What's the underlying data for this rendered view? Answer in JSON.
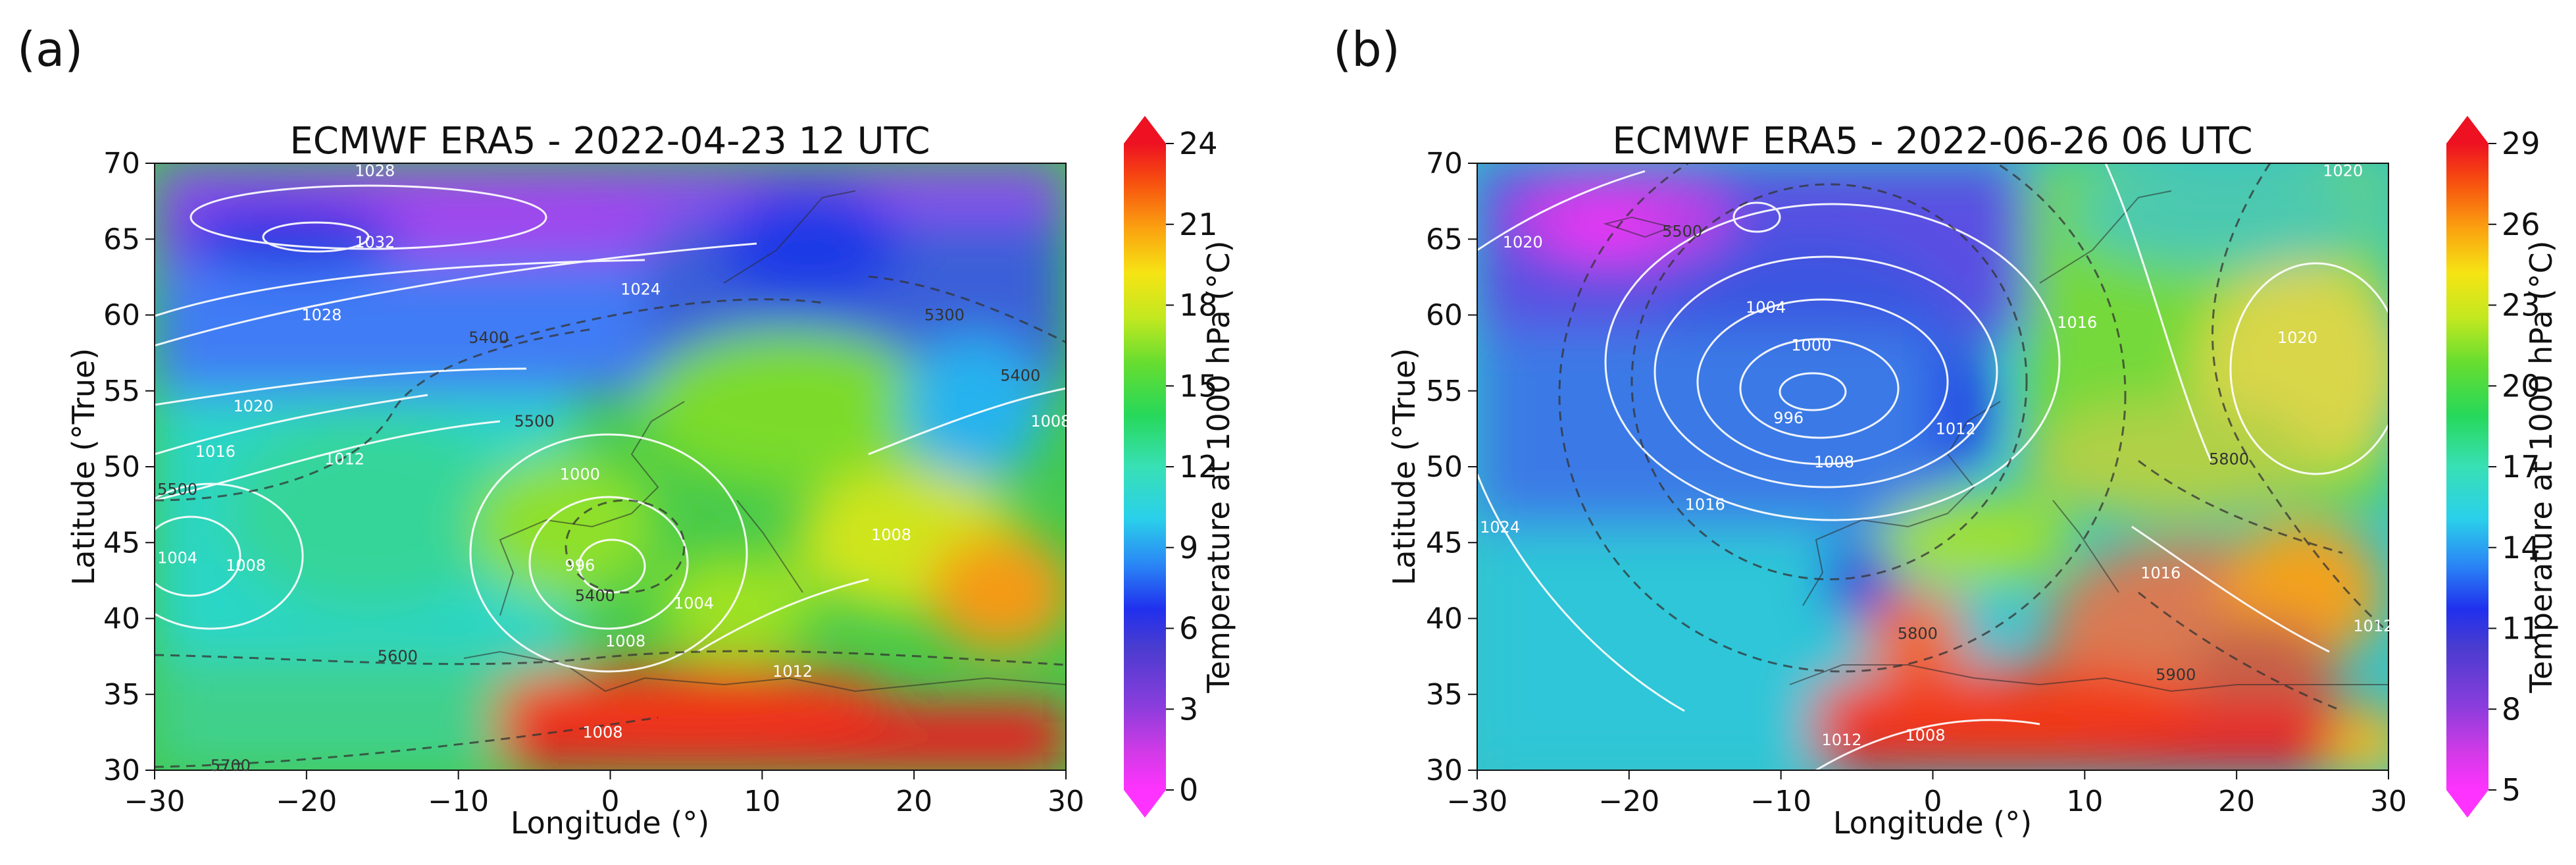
{
  "chart_data": [
    {
      "type": "heatmap",
      "panel_label": "(a)",
      "title": "ECMWF ERA5 - 2022-04-23 12 UTC",
      "xlabel": "Longitude (°)",
      "ylabel": "Latitude (°True)",
      "xlim": [
        -30,
        30
      ],
      "ylim": [
        30,
        70
      ],
      "xticks": [
        "−30",
        "−20",
        "−10",
        "0",
        "10",
        "20",
        "30"
      ],
      "yticks": [
        "30",
        "35",
        "40",
        "45",
        "50",
        "55",
        "60",
        "65",
        "70"
      ],
      "colorbar": {
        "label": "Temperature at 1000 hPa (°C)",
        "range": [
          0,
          24
        ],
        "ticks": [
          "0",
          "3",
          "6",
          "9",
          "12",
          "15",
          "18",
          "21",
          "24"
        ]
      },
      "isobar_labels_hpa": [
        {
          "text": "1028",
          "lon": -15.5,
          "lat": 69.5
        },
        {
          "text": "1032",
          "lon": -15.5,
          "lat": 64.8
        },
        {
          "text": "1028",
          "lon": -19,
          "lat": 60
        },
        {
          "text": "1024",
          "lon": 2,
          "lat": 61.7
        },
        {
          "text": "1020",
          "lon": -23.5,
          "lat": 54
        },
        {
          "text": "1016",
          "lon": -26,
          "lat": 51
        },
        {
          "text": "1012",
          "lon": -17.5,
          "lat": 50.5
        },
        {
          "text": "1000",
          "lon": -2,
          "lat": 49.5
        },
        {
          "text": "996",
          "lon": -2,
          "lat": 43.5
        },
        {
          "text": "1004",
          "lon": -28.5,
          "lat": 44
        },
        {
          "text": "1008",
          "lon": -24,
          "lat": 43.5
        },
        {
          "text": "1004",
          "lon": 5.5,
          "lat": 41
        },
        {
          "text": "1008",
          "lon": 1,
          "lat": 38.5
        },
        {
          "text": "1008",
          "lon": 18.5,
          "lat": 45.5
        },
        {
          "text": "1012",
          "lon": 12,
          "lat": 36.5
        },
        {
          "text": "1008",
          "lon": 29,
          "lat": 53
        },
        {
          "text": "1008",
          "lon": -0.5,
          "lat": 32.5
        }
      ],
      "height_labels_gpm": [
        {
          "text": "5500",
          "lon": -28.5,
          "lat": 48.5
        },
        {
          "text": "5500",
          "lon": -5,
          "lat": 53
        },
        {
          "text": "5400",
          "lon": -1,
          "lat": 41.5
        },
        {
          "text": "5600",
          "lon": -14,
          "lat": 37.5
        },
        {
          "text": "5700",
          "lon": -25,
          "lat": 30.3
        },
        {
          "text": "5300",
          "lon": 22,
          "lat": 60
        },
        {
          "text": "5400",
          "lon": -8,
          "lat": 58.5
        },
        {
          "text": "5400",
          "lon": 27,
          "lat": 56
        }
      ]
    },
    {
      "type": "heatmap",
      "panel_label": "(b)",
      "title": "ECMWF ERA5 - 2022-06-26 06 UTC",
      "xlabel": "Longitude (°)",
      "ylabel": "Latitude (°True)",
      "xlim": [
        -30,
        30
      ],
      "ylim": [
        30,
        70
      ],
      "xticks": [
        "−30",
        "−20",
        "−10",
        "0",
        "10",
        "20",
        "30"
      ],
      "yticks": [
        "30",
        "35",
        "40",
        "45",
        "50",
        "55",
        "60",
        "65",
        "70"
      ],
      "colorbar": {
        "label": "Temperature at 1000 hPa (°C)",
        "range": [
          5,
          29
        ],
        "ticks": [
          "5",
          "8",
          "11",
          "14",
          "17",
          "20",
          "23",
          "26",
          "29"
        ]
      },
      "isobar_labels_hpa": [
        {
          "text": "1020",
          "lon": -27,
          "lat": 64.8
        },
        {
          "text": "1004",
          "lon": -11,
          "lat": 60.5
        },
        {
          "text": "1000",
          "lon": -8,
          "lat": 58
        },
        {
          "text": "996",
          "lon": -9.5,
          "lat": 53.2
        },
        {
          "text": "1008",
          "lon": -6.5,
          "lat": 50.3
        },
        {
          "text": "1012",
          "lon": 1.5,
          "lat": 52.5
        },
        {
          "text": "1016",
          "lon": -15,
          "lat": 47.5
        },
        {
          "text": "1024",
          "lon": -28.5,
          "lat": 46
        },
        {
          "text": "1016",
          "lon": 9.5,
          "lat": 59.5
        },
        {
          "text": "1020",
          "lon": 24,
          "lat": 58.5
        },
        {
          "text": "1020",
          "lon": 27,
          "lat": 69.5
        },
        {
          "text": "1016",
          "lon": 15,
          "lat": 43
        },
        {
          "text": "1012",
          "lon": 29,
          "lat": 39.5
        },
        {
          "text": "1012",
          "lon": -6,
          "lat": 32
        },
        {
          "text": "1008",
          "lon": -0.5,
          "lat": 32.3
        }
      ],
      "height_labels_gpm": [
        {
          "text": "5500",
          "lon": -16.5,
          "lat": 65.5
        },
        {
          "text": "5800",
          "lon": 19.5,
          "lat": 50.5
        },
        {
          "text": "5800",
          "lon": -1,
          "lat": 39
        },
        {
          "text": "5900",
          "lon": 16,
          "lat": 36.3
        }
      ]
    }
  ]
}
